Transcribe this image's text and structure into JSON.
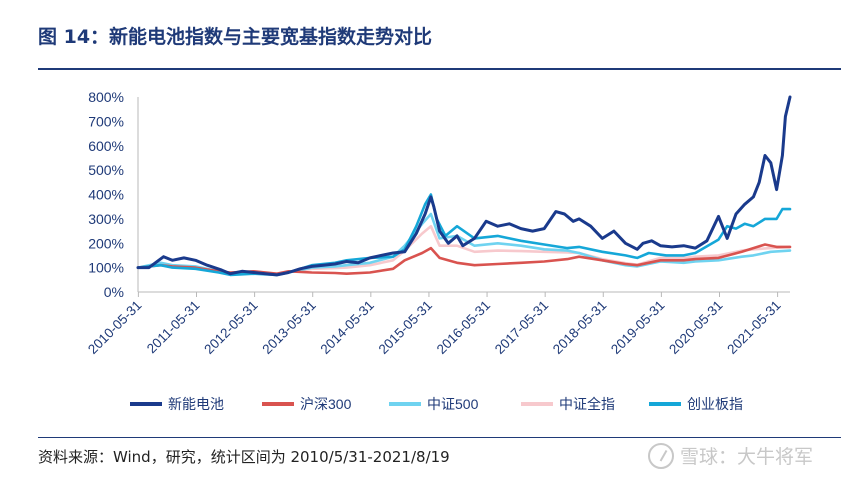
{
  "header": {
    "title": "图 14：新能电池指数与主要宽基指数走势对比"
  },
  "footer": {
    "source": "资料来源：Wind，研究，统计区间为 2010/5/31-2021/8/19",
    "watermark": "雪球：大牛将军"
  },
  "colors": {
    "新能电池": "#1a3a8c",
    "沪深300": "#d9534f",
    "中证500": "#6fd3f0",
    "中证全指": "#f7c9cd",
    "创业板指": "#15a7d8",
    "axis": "#1f3a78"
  },
  "chart_data": {
    "type": "line",
    "title": "",
    "xlabel": "",
    "ylabel": "",
    "y_ticks": [
      "0%",
      "100%",
      "200%",
      "300%",
      "400%",
      "500%",
      "600%",
      "700%",
      "800%"
    ],
    "ylim": [
      0,
      800
    ],
    "x_ticks": [
      "2010-05-31",
      "2011-05-31",
      "2012-05-31",
      "2013-05-31",
      "2014-05-31",
      "2015-05-31",
      "2016-05-31",
      "2017-05-31",
      "2018-05-31",
      "2019-05-31",
      "2020-05-31",
      "2021-05-31"
    ],
    "xlim": [
      2010.41,
      2021.63
    ],
    "legend_position": "bottom",
    "series": [
      {
        "name": "新能电池",
        "x": [
          2010.41,
          2010.6,
          2010.85,
          2011.0,
          2011.2,
          2011.4,
          2011.6,
          2011.85,
          2012.0,
          2012.2,
          2012.4,
          2012.6,
          2012.8,
          2013.0,
          2013.2,
          2013.4,
          2013.6,
          2013.8,
          2014.0,
          2014.2,
          2014.4,
          2014.6,
          2014.8,
          2015.0,
          2015.2,
          2015.35,
          2015.45,
          2015.5,
          2015.6,
          2015.75,
          2015.9,
          2016.0,
          2016.2,
          2016.4,
          2016.6,
          2016.8,
          2017.0,
          2017.2,
          2017.4,
          2017.6,
          2017.75,
          2017.9,
          2018.0,
          2018.2,
          2018.4,
          2018.6,
          2018.8,
          2019.0,
          2019.1,
          2019.25,
          2019.4,
          2019.6,
          2019.8,
          2020.0,
          2020.2,
          2020.4,
          2020.55,
          2020.7,
          2020.85,
          2021.0,
          2021.1,
          2021.2,
          2021.3,
          2021.4,
          2021.5,
          2021.55,
          2021.63
        ],
        "values": [
          100,
          100,
          145,
          130,
          140,
          130,
          110,
          90,
          75,
          85,
          80,
          75,
          70,
          80,
          95,
          105,
          110,
          115,
          125,
          120,
          140,
          150,
          160,
          165,
          240,
          320,
          390,
          350,
          250,
          200,
          230,
          190,
          220,
          290,
          270,
          280,
          260,
          250,
          260,
          330,
          320,
          290,
          300,
          270,
          220,
          250,
          200,
          175,
          200,
          210,
          190,
          185,
          190,
          180,
          210,
          310,
          220,
          320,
          360,
          390,
          450,
          560,
          530,
          420,
          560,
          720,
          800
        ]
      },
      {
        "name": "沪深300",
        "x": [
          2010.41,
          2010.8,
          2011.0,
          2011.4,
          2011.8,
          2012.0,
          2012.4,
          2012.8,
          2013.0,
          2013.4,
          2013.8,
          2014.0,
          2014.4,
          2014.8,
          2015.0,
          2015.3,
          2015.45,
          2015.6,
          2015.9,
          2016.2,
          2016.6,
          2017.0,
          2017.4,
          2017.8,
          2018.0,
          2018.4,
          2018.8,
          2019.0,
          2019.4,
          2019.8,
          2020.0,
          2020.4,
          2020.8,
          2021.0,
          2021.2,
          2021.4,
          2021.63
        ],
        "values": [
          100,
          110,
          105,
          100,
          85,
          80,
          85,
          75,
          85,
          80,
          78,
          75,
          80,
          95,
          130,
          160,
          180,
          140,
          120,
          110,
          115,
          120,
          125,
          135,
          145,
          130,
          115,
          110,
          130,
          130,
          135,
          140,
          165,
          180,
          195,
          185,
          185
        ]
      },
      {
        "name": "中证500",
        "x": [
          2010.41,
          2010.8,
          2011.0,
          2011.4,
          2011.8,
          2012.0,
          2012.4,
          2012.8,
          2013.0,
          2013.4,
          2013.8,
          2014.0,
          2014.4,
          2014.8,
          2015.0,
          2015.3,
          2015.45,
          2015.6,
          2015.9,
          2016.2,
          2016.6,
          2017.0,
          2017.4,
          2017.8,
          2018.0,
          2018.4,
          2018.8,
          2019.0,
          2019.4,
          2019.8,
          2020.0,
          2020.4,
          2020.8,
          2021.0,
          2021.3,
          2021.63
        ],
        "values": [
          100,
          120,
          110,
          105,
          85,
          75,
          80,
          70,
          80,
          100,
          105,
          110,
          120,
          145,
          190,
          280,
          320,
          220,
          230,
          190,
          200,
          190,
          175,
          170,
          160,
          130,
          110,
          105,
          125,
          120,
          125,
          130,
          145,
          150,
          165,
          170
        ]
      },
      {
        "name": "中证全指",
        "x": [
          2010.41,
          2010.8,
          2011.0,
          2011.4,
          2011.8,
          2012.0,
          2012.4,
          2012.8,
          2013.0,
          2013.4,
          2013.8,
          2014.0,
          2014.4,
          2014.8,
          2015.0,
          2015.3,
          2015.45,
          2015.6,
          2015.9,
          2016.2,
          2016.6,
          2017.0,
          2017.4,
          2017.8,
          2018.0,
          2018.4,
          2018.8,
          2019.0,
          2019.4,
          2019.8,
          2020.0,
          2020.4,
          2020.8,
          2021.0,
          2021.3,
          2021.63
        ],
        "values": [
          100,
          115,
          108,
          100,
          85,
          78,
          82,
          72,
          82,
          95,
          98,
          100,
          110,
          130,
          170,
          240,
          270,
          190,
          190,
          165,
          170,
          168,
          165,
          162,
          160,
          135,
          118,
          112,
          140,
          140,
          145,
          150,
          170,
          175,
          180,
          185
        ]
      },
      {
        "name": "创业板指",
        "x": [
          2010.41,
          2010.8,
          2011.0,
          2011.4,
          2011.8,
          2012.0,
          2012.4,
          2012.8,
          2013.0,
          2013.4,
          2013.8,
          2014.0,
          2014.4,
          2014.8,
          2015.0,
          2015.2,
          2015.35,
          2015.45,
          2015.55,
          2015.7,
          2015.9,
          2016.2,
          2016.6,
          2017.0,
          2017.4,
          2017.8,
          2018.0,
          2018.4,
          2018.8,
          2019.0,
          2019.2,
          2019.5,
          2019.8,
          2020.0,
          2020.4,
          2020.55,
          2020.7,
          2020.85,
          2021.0,
          2021.2,
          2021.4,
          2021.5,
          2021.63
        ],
        "values": [
          100,
          110,
          100,
          95,
          80,
          70,
          75,
          70,
          80,
          110,
          120,
          130,
          140,
          145,
          175,
          270,
          360,
          400,
          300,
          230,
          270,
          220,
          230,
          210,
          195,
          180,
          185,
          165,
          150,
          140,
          160,
          150,
          150,
          160,
          215,
          270,
          260,
          280,
          270,
          300,
          300,
          340,
          340
        ]
      }
    ]
  }
}
